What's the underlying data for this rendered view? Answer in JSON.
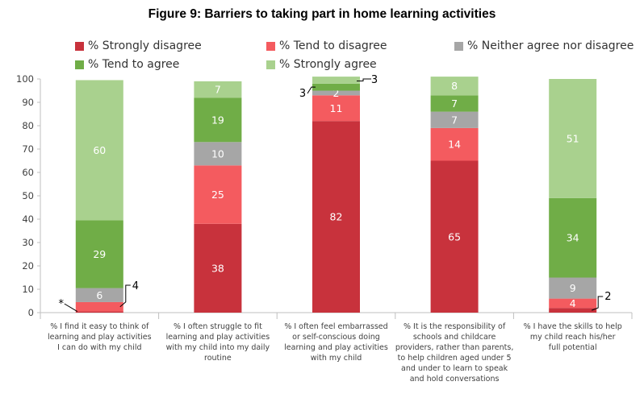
{
  "chart_data": {
    "type": "bar",
    "stacked": true,
    "title": "Figure 9: Barriers to taking part in home learning activities",
    "xlabel": "",
    "ylabel": "",
    "ylim": [
      0,
      100
    ],
    "yticks": [
      "0",
      "10",
      "20",
      "30",
      "40",
      "50",
      "60",
      "70",
      "80",
      "90",
      "100"
    ],
    "grid": false,
    "legend_position": "top",
    "categories": [
      [
        "% I find it easy to think of",
        "learning and play activities",
        "I can do with my child"
      ],
      [
        "% I often struggle to fit",
        "learning and play activities",
        "with my child into my daily",
        "routine"
      ],
      [
        "% I often feel embarrassed",
        "or self-conscious doing",
        "learning and play activities",
        "with my child"
      ],
      [
        "% It is the responsibility of",
        "schools and childcare",
        "providers, rather than parents,",
        "to help children aged under 5",
        "and under to learn to speak",
        "and hold conversations"
      ],
      [
        "% I have the skills to help",
        "my child reach his/her",
        "full potential"
      ]
    ],
    "series": [
      {
        "name": "% Strongly disagree",
        "color": "#c8323c",
        "values": [
          0.5,
          38,
          82,
          65,
          2
        ],
        "labels": [
          "",
          "38",
          "82",
          "65",
          ""
        ]
      },
      {
        "name": "% Tend to disagree",
        "color": "#f45b5f",
        "values": [
          4,
          25,
          11,
          14,
          4
        ],
        "labels": [
          "",
          "25",
          "11",
          "14",
          "4"
        ]
      },
      {
        "name": "% Neither agree nor disagree",
        "color": "#a6a6a6",
        "values": [
          6,
          10,
          2,
          7,
          9
        ],
        "labels": [
          "6",
          "10",
          "2",
          "7",
          "9"
        ]
      },
      {
        "name": "% Tend to agree",
        "color": "#70ad47",
        "values": [
          29,
          19,
          3,
          7,
          34
        ],
        "labels": [
          "29",
          "19",
          "",
          "7",
          "34"
        ]
      },
      {
        "name": "% Strongly agree",
        "color": "#a9d18e",
        "values": [
          60,
          7,
          3,
          8,
          51
        ],
        "labels": [
          "60",
          "7",
          "",
          "8",
          "51"
        ]
      }
    ],
    "annotations": [
      {
        "text": "*",
        "category": 0,
        "series": 0
      },
      {
        "text": "4",
        "category": 0,
        "series": 1
      },
      {
        "text": "3",
        "category": 2,
        "series": 3
      },
      {
        "text": "3",
        "category": 2,
        "series": 4
      },
      {
        "text": "2",
        "category": 4,
        "series": 0
      }
    ]
  }
}
